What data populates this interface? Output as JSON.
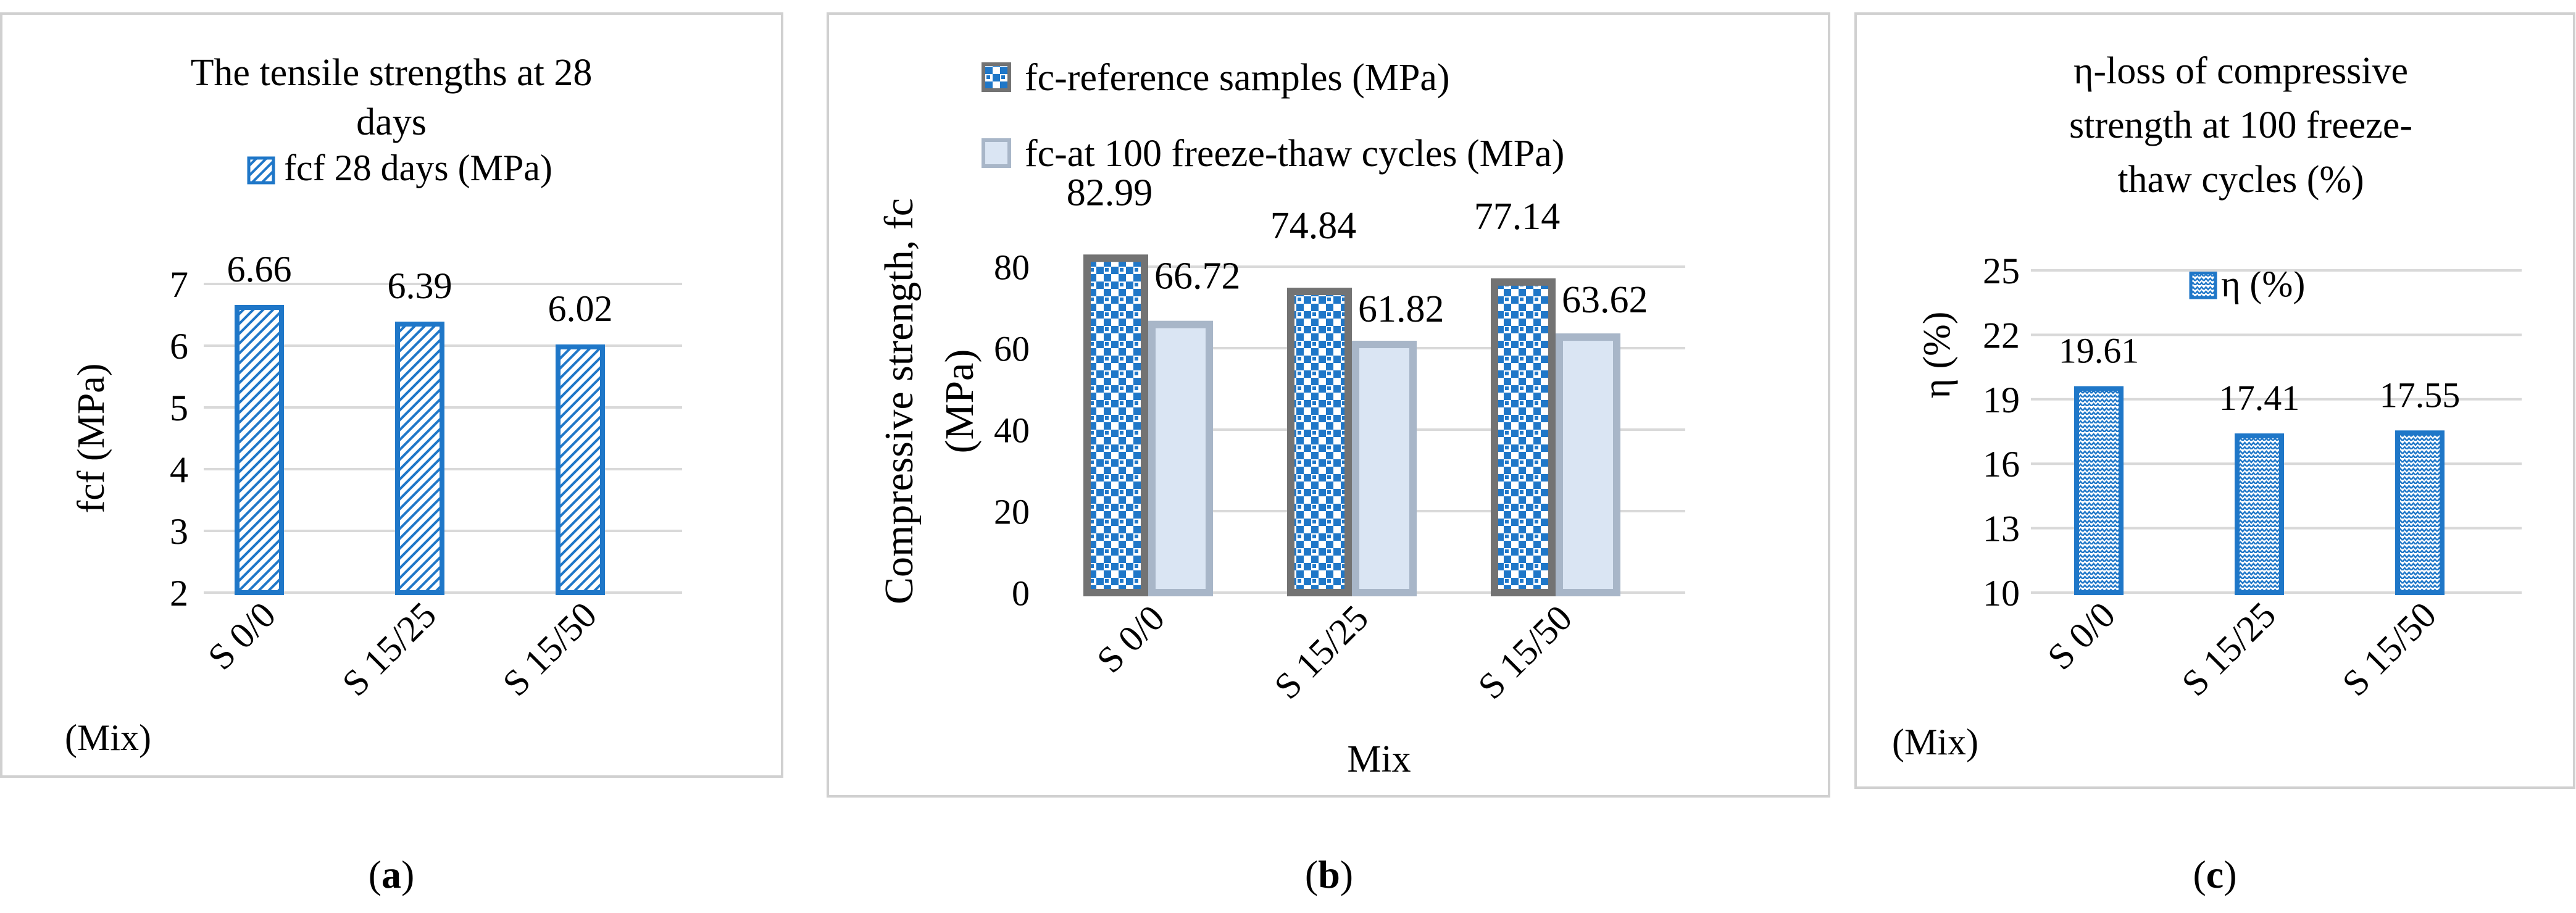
{
  "chart_data": [
    {
      "type": "bar",
      "panel_label": "a",
      "title": "The tensile strengths at 28 days",
      "ylabel": "fcf  (MPa)",
      "xlabel": "(Mix)",
      "categories": [
        "S 0/0",
        "S 15/25",
        "S 15/50"
      ],
      "ylim": [
        2,
        7
      ],
      "yticks": [
        2,
        3,
        4,
        5,
        6,
        7
      ],
      "grid": true,
      "legend_position": "top",
      "series": [
        {
          "name": "fcf 28 days (MPa)",
          "values": [
            6.66,
            6.39,
            6.02
          ],
          "labels": [
            "6.66",
            "6.39",
            "6.02"
          ],
          "color": "#1f77c8",
          "pattern": "diagonal-hatch"
        }
      ]
    },
    {
      "type": "bar",
      "panel_label": "b",
      "title": "",
      "ylabel": "Compressive strength, fc (MPa)",
      "xlabel": "Mix",
      "categories": [
        "S 0/0",
        "S 15/25",
        "S 15/50"
      ],
      "ylim": [
        0,
        90
      ],
      "yticks": [
        0,
        20,
        40,
        60,
        80
      ],
      "grid": true,
      "legend_position": "top",
      "series": [
        {
          "name": "fc-reference samples (MPa)",
          "values": [
            82.99,
            74.84,
            77.14
          ],
          "labels": [
            "82.99",
            "74.84",
            "77.14"
          ],
          "color": "#1f77c8",
          "border": "#737373",
          "pattern": "checker"
        },
        {
          "name": "fc-at 100 freeze-thaw cycles (MPa)",
          "values": [
            66.72,
            61.82,
            63.62
          ],
          "labels": [
            "66.72",
            "61.82",
            "63.62"
          ],
          "color": "#dae5f3",
          "border": "#a8b6c8",
          "pattern": "solid"
        }
      ]
    },
    {
      "type": "bar",
      "panel_label": "c",
      "title": "η-loss of  compressive strength at 100 freeze-thaw cycles (%)",
      "ylabel": "η (%)",
      "xlabel": "(Mix)",
      "categories": [
        "S 0/0",
        "S 15/25",
        "S 15/50"
      ],
      "ylim": [
        10,
        25
      ],
      "yticks": [
        10,
        13,
        16,
        19,
        22,
        25
      ],
      "grid": true,
      "legend_position": "top",
      "series": [
        {
          "name": "η (%)",
          "values": [
            19.61,
            17.41,
            17.55
          ],
          "labels": [
            "19.61",
            "17.41",
            "17.55"
          ],
          "color": "#1f77c8",
          "pattern": "zigzag"
        }
      ]
    }
  ],
  "labels": {
    "a_title_line1": "The tensile strengths at 28",
    "a_title_line2": "days",
    "c_title_line1": "η-loss of  compressive",
    "c_title_line2": "strength at 100 freeze-",
    "c_title_line3": "thaw cycles (%)",
    "b_ylabel_line1": "Compressive strength, fc",
    "b_ylabel_line2": "(MPa)",
    "caption_a": "a",
    "caption_b": "b",
    "caption_c": "c"
  }
}
